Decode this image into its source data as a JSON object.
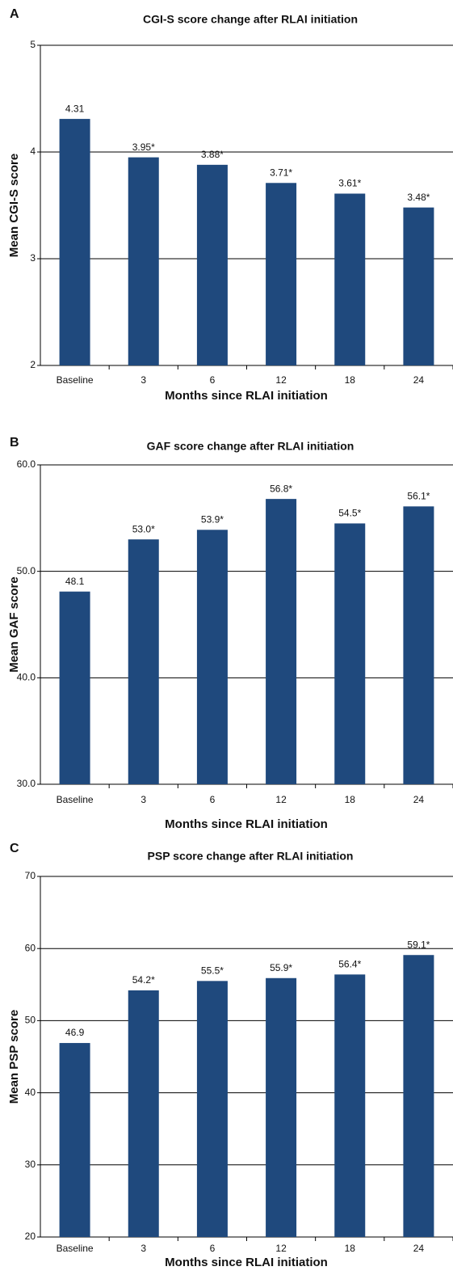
{
  "chart_data": [
    {
      "type": "bar",
      "panel": "A",
      "title": "CGI-S score change after RLAI initiation",
      "x_label": "Months since RLAI initiation",
      "y_label": "Mean CGI-S score",
      "categories": [
        "Baseline",
        "3",
        "6",
        "12",
        "18",
        "24"
      ],
      "values": [
        4.31,
        3.95,
        3.88,
        3.71,
        3.61,
        3.48
      ],
      "value_labels": [
        "4.31",
        "3.95*",
        "3.88*",
        "3.71*",
        "3.61*",
        "3.48*"
      ],
      "color": "#1f497d",
      "ylim": [
        2,
        5
      ],
      "yticks": [
        2,
        3,
        4,
        5
      ],
      "grid": true
    },
    {
      "type": "bar",
      "panel": "B",
      "title": "GAF score change after RLAI initiation",
      "x_label": "Months since RLAI initiation",
      "y_label": "Mean GAF score",
      "categories": [
        "Baseline",
        "3",
        "6",
        "12",
        "18",
        "24"
      ],
      "values": [
        48.1,
        53.0,
        53.9,
        56.8,
        54.5,
        56.1
      ],
      "value_labels": [
        "48.1",
        "53.0*",
        "53.9*",
        "56.8*",
        "54.5*",
        "56.1*"
      ],
      "color": "#1f497d",
      "ylim": [
        30,
        60
      ],
      "yticks": [
        {
          "value": 30,
          "label": "30.0"
        },
        {
          "value": 40,
          "label": "40.0"
        },
        {
          "value": 50,
          "label": "50.0"
        },
        {
          "value": 60,
          "label": "60.0"
        }
      ],
      "grid": true
    },
    {
      "type": "bar",
      "panel": "C",
      "title": "PSP score change after RLAI initiation",
      "x_label": "Months since RLAI initiation",
      "y_label": "Mean PSP score",
      "categories": [
        "Baseline",
        "3",
        "6",
        "12",
        "18",
        "24"
      ],
      "values": [
        46.9,
        54.2,
        55.5,
        55.9,
        56.4,
        59.1
      ],
      "value_labels": [
        "46.9",
        "54.2*",
        "55.5*",
        "55.9*",
        "56.4*",
        "59.1*"
      ],
      "color": "#1f497d",
      "ylim": [
        20,
        70
      ],
      "yticks": [
        20,
        30,
        40,
        50,
        60,
        70
      ],
      "grid": true
    }
  ]
}
